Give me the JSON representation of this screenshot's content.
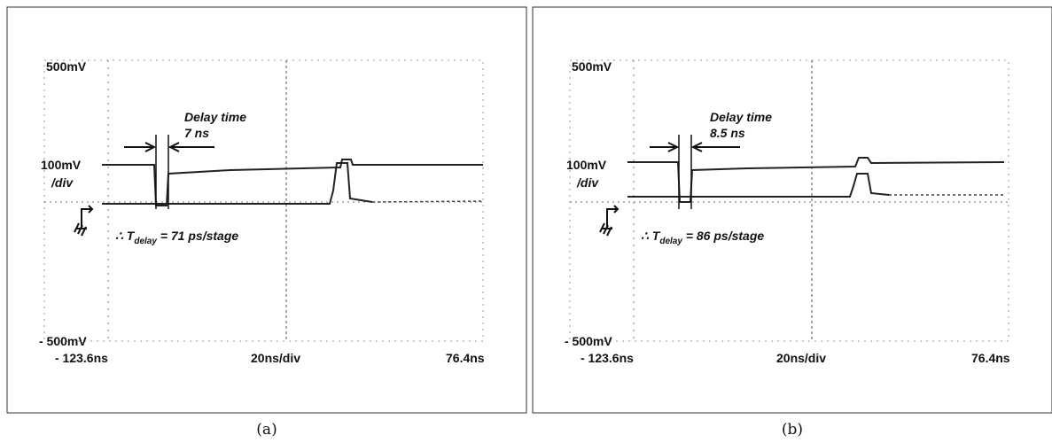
{
  "panels": [
    {
      "top_label": "500mV",
      "scale_label": "100mV",
      "scale_unit": "/div",
      "bottom_label": "- 500mV",
      "time_start": "- 123.6ns",
      "time_div": "20ns/div",
      "time_end": "76.4ns",
      "delay_title": "Delay time",
      "delay_value": "7 ns",
      "result": {
        "prefix": "∴ ",
        "symbol": "T",
        "subscript": "delay",
        "rest": " = 71 ps/stage"
      },
      "caption": "(a)"
    },
    {
      "top_label": "500mV",
      "scale_label": "100mV",
      "scale_unit": "/div",
      "bottom_label": "- 500mV",
      "time_start": "- 123.6ns",
      "time_div": "20ns/div",
      "time_end": "76.4ns",
      "delay_title": "Delay time",
      "delay_value": "8.5 ns",
      "result": {
        "prefix": "∴ ",
        "symbol": "T",
        "subscript": "delay",
        "rest": " = 86 ps/stage"
      },
      "caption": "(b)"
    }
  ]
}
